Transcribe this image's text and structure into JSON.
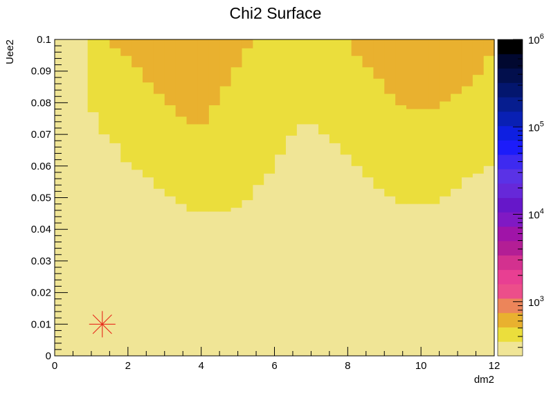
{
  "chart_data": {
    "type": "heatmap",
    "title": "Chi2 Surface",
    "xlabel": "dm2",
    "ylabel": "Uee2",
    "xlim": [
      0,
      12
    ],
    "ylim": [
      0,
      0.1
    ],
    "x_ticks": [
      "0",
      "2",
      "4",
      "6",
      "8",
      "10",
      "12"
    ],
    "y_ticks": [
      "0",
      "0.01",
      "0.02",
      "0.03",
      "0.04",
      "0.05",
      "0.06",
      "0.07",
      "0.08",
      "0.09",
      "0.1"
    ],
    "z_scale": "log",
    "zlim": [
      240,
      1000000
    ],
    "palette_labels": [
      {
        "base": "10",
        "exp": "3",
        "value": 1000
      },
      {
        "base": "10",
        "exp": "4",
        "value": 10000
      },
      {
        "base": "10",
        "exp": "5",
        "value": 100000
      },
      {
        "base": "10",
        "exp": "6",
        "value": 1000000
      }
    ],
    "palette_colors": [
      "#F0E596",
      "#EBDE3C",
      "#E9B12F",
      "#EC855A",
      "#EC4E8A",
      "#E83F92",
      "#D3318F",
      "#B31E95",
      "#A014A8",
      "#8019C4",
      "#6617C9",
      "#6628D9",
      "#5A32E6",
      "#3E2AF0",
      "#1C1CFA",
      "#0E1FE1",
      "#0920B4",
      "#061D8F",
      "#03166E",
      "#020F4D",
      "#010830",
      "#000000"
    ],
    "x_bins": 40,
    "y_bins": 30,
    "contour_levels": [
      {
        "name": "level-1",
        "color": "#EBDE3C",
        "x": [
          0,
          0.3,
          0.6,
          0.9,
          1.2,
          1.5,
          1.8,
          2.1,
          2.4,
          2.7,
          3.0,
          3.3,
          3.6,
          3.9,
          4.2,
          4.5,
          4.8,
          5.1,
          5.4,
          5.7,
          6.0,
          6.3,
          6.6,
          6.9,
          7.2,
          7.5,
          7.8,
          8.1,
          8.4,
          8.7,
          9.0,
          9.3,
          9.6,
          9.9,
          10.2,
          10.5,
          10.8,
          11.1,
          11.4,
          11.7
        ],
        "y": [
          0.1,
          0.1,
          0.1,
          0.077,
          0.07,
          0.0672,
          0.0612,
          0.0588,
          0.0564,
          0.0528,
          0.0504,
          0.048,
          0.0456,
          0.0456,
          0.0456,
          0.0456,
          0.0468,
          0.0492,
          0.054,
          0.0576,
          0.0636,
          0.0696,
          0.0732,
          0.0732,
          0.07,
          0.0672,
          0.0636,
          0.06,
          0.0564,
          0.0528,
          0.0504,
          0.048,
          0.048,
          0.048,
          0.048,
          0.0504,
          0.0528,
          0.0564,
          0.0576,
          0.06
        ]
      },
      {
        "name": "level-2",
        "color": "#E9B12F",
        "x": [
          1.5,
          1.8,
          2.1,
          2.4,
          2.7,
          3.0,
          3.3,
          3.6,
          3.9,
          4.2,
          4.5,
          4.8,
          5.1,
          5.4,
          7.8,
          8.1,
          8.4,
          8.7,
          9.0,
          9.3,
          9.6,
          9.9,
          10.2,
          10.5,
          10.8,
          11.1,
          11.4,
          11.7
        ],
        "y": [
          0.0972,
          0.0948,
          0.0912,
          0.0864,
          0.0828,
          0.0792,
          0.0756,
          0.0732,
          0.0732,
          0.0792,
          0.0852,
          0.0912,
          0.0972,
          0.1,
          0.1,
          0.0948,
          0.0912,
          0.0876,
          0.0828,
          0.0792,
          0.078,
          0.078,
          0.078,
          0.0804,
          0.0828,
          0.0852,
          0.0888,
          0.0948
        ]
      }
    ],
    "marker": {
      "x": 1.3,
      "y": 0.01,
      "color": "#E8271A"
    }
  }
}
